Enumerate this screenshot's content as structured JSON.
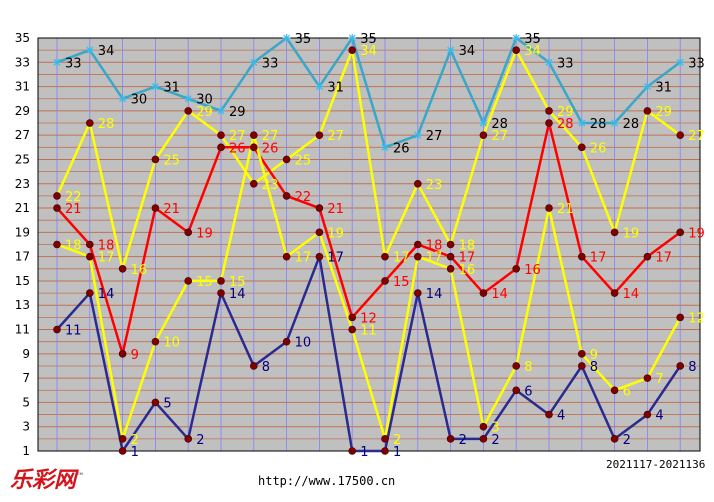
{
  "footer": {
    "logo_text": "乐彩网",
    "url": "http://www.17500.cn",
    "period_range": "2021117-2021136"
  },
  "colors": {
    "plot_background": "#c0c0c0",
    "grid_horizontal": "#c07050",
    "grid_vertical": "#8080ff",
    "series_top": "#3aa6c8",
    "series_second": "#ffff00",
    "series_third": "#ff0000",
    "series_fourth": "#ffff00",
    "series_bottom": "#2a2a90",
    "marker": "#800000"
  },
  "chart_data": {
    "type": "line",
    "x": [
      1,
      2,
      3,
      4,
      5,
      6,
      7,
      8,
      9,
      10,
      11,
      12,
      13,
      14,
      15,
      16,
      17,
      18,
      19,
      20
    ],
    "y_ticks": [
      1,
      3,
      5,
      7,
      9,
      11,
      13,
      15,
      17,
      19,
      21,
      23,
      25,
      27,
      29,
      31,
      33,
      35
    ],
    "ylim": [
      1,
      35
    ],
    "grid": true,
    "series": [
      {
        "values": [
          33,
          34,
          30,
          31,
          30,
          29,
          33,
          35,
          31,
          35,
          26,
          27,
          34,
          28,
          35,
          33,
          28,
          28,
          31,
          33
        ],
        "color": "#3aa6c8",
        "label_color": "#000000",
        "marker": "star"
      },
      {
        "values": [
          22,
          28,
          16,
          25,
          29,
          27,
          23,
          25,
          27,
          34,
          17,
          23,
          18,
          27,
          34,
          29,
          26,
          19,
          29,
          27
        ],
        "color": "#ffff00",
        "label_color": "#ffff00",
        "marker": "dot"
      },
      {
        "values": [
          21,
          18,
          9,
          21,
          19,
          26,
          26,
          22,
          21,
          12,
          15,
          18,
          17,
          14,
          16,
          28,
          17,
          14,
          17,
          19
        ],
        "color": "#ff0000",
        "label_color": "#ff0000",
        "marker": "dot"
      },
      {
        "values": [
          18,
          17,
          2,
          10,
          15,
          15,
          27,
          17,
          19,
          11,
          2,
          17,
          16,
          3,
          8,
          21,
          9,
          6,
          7,
          12
        ],
        "color": "#ffff00",
        "label_color": "#ffff00",
        "marker": "dot"
      },
      {
        "values": [
          11,
          14,
          1,
          5,
          2,
          14,
          8,
          10,
          17,
          1,
          1,
          14,
          2,
          2,
          6,
          4,
          8,
          2,
          4,
          8
        ],
        "color": "#2a2a90",
        "label_color": "#000080",
        "marker": "dot"
      }
    ]
  }
}
